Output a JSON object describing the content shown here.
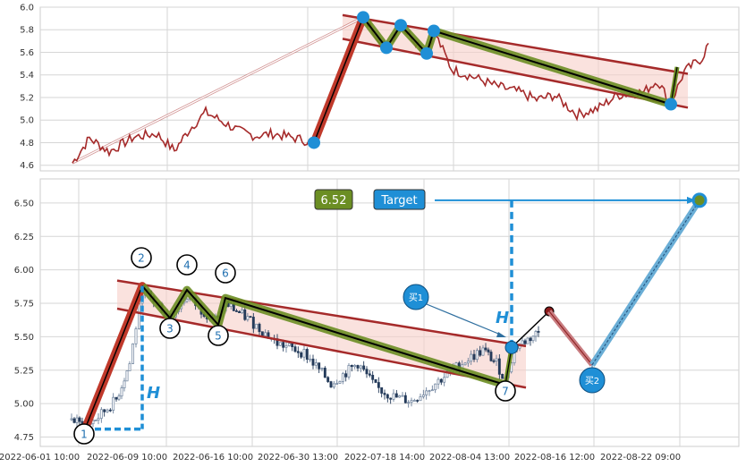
{
  "chart_data": [
    {
      "type": "line",
      "panel": "top",
      "title": "",
      "ylim": [
        4.55,
        6.0
      ],
      "yticks": [
        "6.0",
        "5.8",
        "5.6",
        "5.4",
        "5.2",
        "5.0",
        "4.8",
        "4.6"
      ],
      "grid": true,
      "series_color": "#a52a2a",
      "pattern_points": [
        4.8,
        5.91,
        5.64,
        5.84,
        5.59,
        5.79,
        5.14
      ],
      "channel": {
        "upper": [
          5.93,
          5.41
        ],
        "lower": [
          5.72,
          5.11
        ]
      }
    },
    {
      "type": "candlestick",
      "panel": "bottom",
      "title": "",
      "ylim": [
        4.68,
        6.68
      ],
      "yticks": [
        "6.50",
        "6.25",
        "6.00",
        "5.75",
        "5.50",
        "5.25",
        "5.00",
        "4.75"
      ],
      "xticks": [
        "2022-06-01 10:00",
        "2022-06-09 10:00",
        "2022-06-16 10:00",
        "2022-06-30 13:00",
        "2022-07-18 14:00",
        "2022-08-04 13:00",
        "2022-08-16 12:00",
        "2022-08-22 09:00"
      ],
      "grid": true,
      "pattern": [
        {
          "label": "1",
          "value": 4.81
        },
        {
          "label": "2",
          "value": 5.88
        },
        {
          "label": "3",
          "value": 5.64
        },
        {
          "label": "4",
          "value": 5.85
        },
        {
          "label": "5",
          "value": 5.59
        },
        {
          "label": "6",
          "value": 5.79
        },
        {
          "label": "7",
          "value": 5.14
        }
      ],
      "projection": {
        "breakout": 5.42,
        "peak": 5.69,
        "buy2": 5.29,
        "target": 6.52
      },
      "target_value": "6.52",
      "target_label": "Target",
      "buy1_label": "买1",
      "buy2_label": "买2",
      "height_label": "H"
    }
  ]
}
